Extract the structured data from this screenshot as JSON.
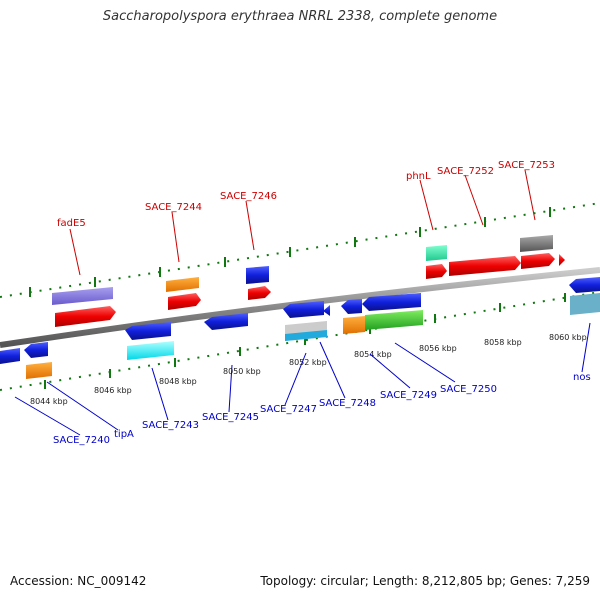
{
  "title": "Saccharopolyspora erythraea NRRL 2338, complete genome",
  "footer": {
    "accession": "Accession: NC_009142",
    "summary": "Topology: circular; Length: 8,212,805 bp; Genes: 7,259"
  },
  "colors": {
    "forward_label": "#cc0000",
    "reverse_label": "#0000cc",
    "backbone": "#888888",
    "tick": "#117711"
  },
  "ticks": [
    "8044 kbp",
    "8046 kbp",
    "8048 kbp",
    "8050 kbp",
    "8052 kbp",
    "8054 kbp",
    "8056 kbp",
    "8058 kbp",
    "8060 kbp"
  ],
  "forward_labels": [
    "fadE5",
    "SACE_7244",
    "SACE_7246",
    "phnL",
    "SACE_7252",
    "SACE_7253"
  ],
  "reverse_labels": [
    "SACE_7240",
    "tipA",
    "SACE_7243",
    "SACE_7245",
    "SACE_7247",
    "SACE_7248",
    "SACE_7249",
    "SACE_7250",
    "nos"
  ]
}
